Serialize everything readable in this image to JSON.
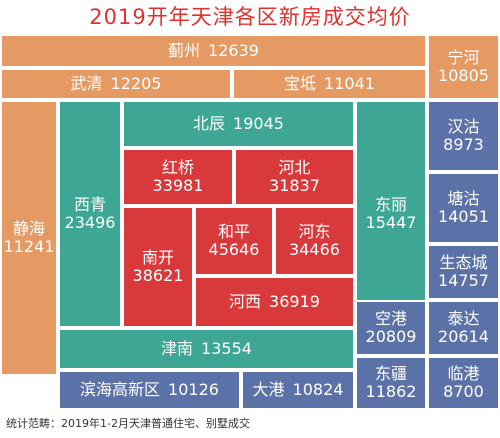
{
  "title": "2019开年天津各区新房成交均价",
  "colors": {
    "title": "#e0312d",
    "outer_ring": "#e59a63",
    "middle_ring": "#3ea694",
    "core": "#d9393b",
    "suburbs": "#5b72a8"
  },
  "districts": {
    "jizhou": {
      "name": "蓟州",
      "price": "12639"
    },
    "wuqing": {
      "name": "武清",
      "price": "12205"
    },
    "baodi": {
      "name": "宝坻",
      "price": "11041"
    },
    "ninghe": {
      "name": "宁河",
      "price": "10805"
    },
    "jinghai": {
      "name": "静海",
      "price": "11241"
    },
    "xiqing": {
      "name": "西青",
      "price": "23496"
    },
    "beichen": {
      "name": "北辰",
      "price": "19045"
    },
    "dongli": {
      "name": "东丽",
      "price": "15447"
    },
    "hongqiao": {
      "name": "红桥",
      "price": "33981"
    },
    "hebei": {
      "name": "河北",
      "price": "31837"
    },
    "nankai": {
      "name": "南开",
      "price": "38621"
    },
    "heping": {
      "name": "和平",
      "price": "45646"
    },
    "hedong": {
      "name": "河东",
      "price": "34466"
    },
    "hexi": {
      "name": "河西",
      "price": "36919"
    },
    "jinnan": {
      "name": "津南",
      "price": "13554"
    },
    "binhai": {
      "name": "滨海高新区",
      "price": "10126"
    },
    "dagang": {
      "name": "大港",
      "price": "10824"
    },
    "hangu": {
      "name": "汉沽",
      "price": "8973"
    },
    "tanggu": {
      "name": "塘沽",
      "price": "14051"
    },
    "shengtaicheng": {
      "name": "生态城",
      "price": "14757"
    },
    "konggang": {
      "name": "空港",
      "price": "20809"
    },
    "taida": {
      "name": "泰达",
      "price": "20614"
    },
    "dongjiang": {
      "name": "东疆",
      "price": "11862"
    },
    "lingang": {
      "name": "临港",
      "price": "8700"
    }
  },
  "footer": "统计范畴：2019年1-2月天津普通住宅、别墅成交"
}
